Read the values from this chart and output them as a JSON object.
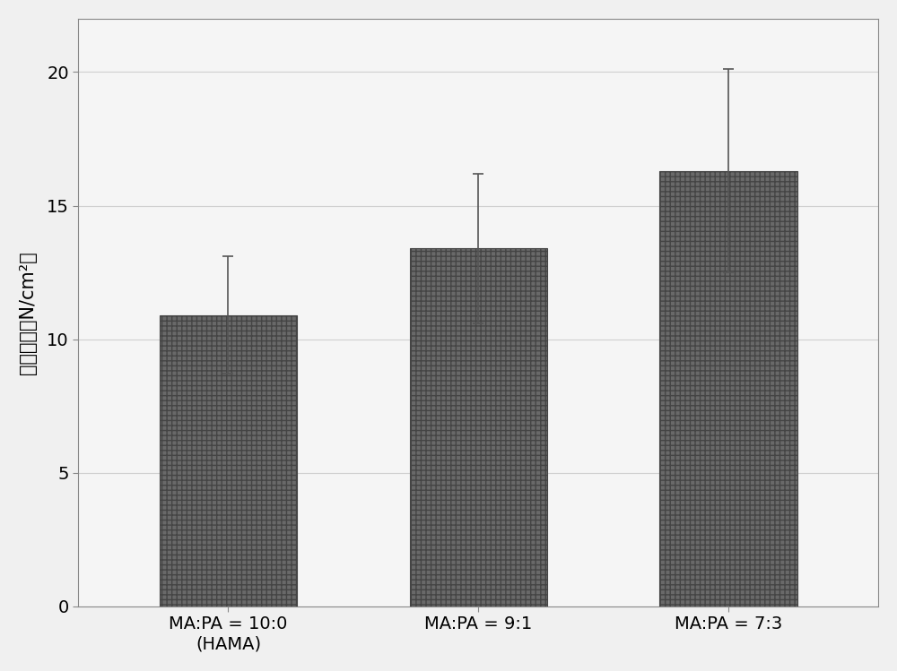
{
  "categories": [
    "MA:PA = 10:0\n(HAMA)",
    "MA:PA = 9:1",
    "MA:PA = 7:3"
  ],
  "values": [
    10.9,
    13.4,
    16.3
  ],
  "errors": [
    2.2,
    2.8,
    3.8
  ],
  "bar_color": "#696969",
  "bar_edgecolor": "#444444",
  "hatch": "+++",
  "ylabel": "拉伸模量（N/cm²）",
  "ylim": [
    0,
    22
  ],
  "yticks": [
    0,
    5,
    10,
    15,
    20
  ],
  "background_color": "#f0f0f0",
  "plot_bg_color": "#f5f5f5",
  "bar_width": 0.55,
  "tick_fontsize": 14,
  "ylabel_fontsize": 15,
  "xlabel_fontsize": 14,
  "errorbar_capsize": 4,
  "errorbar_color": "#555555",
  "errorbar_linewidth": 1.2,
  "grid_color": "#d0d0d0",
  "spine_color": "#888888"
}
